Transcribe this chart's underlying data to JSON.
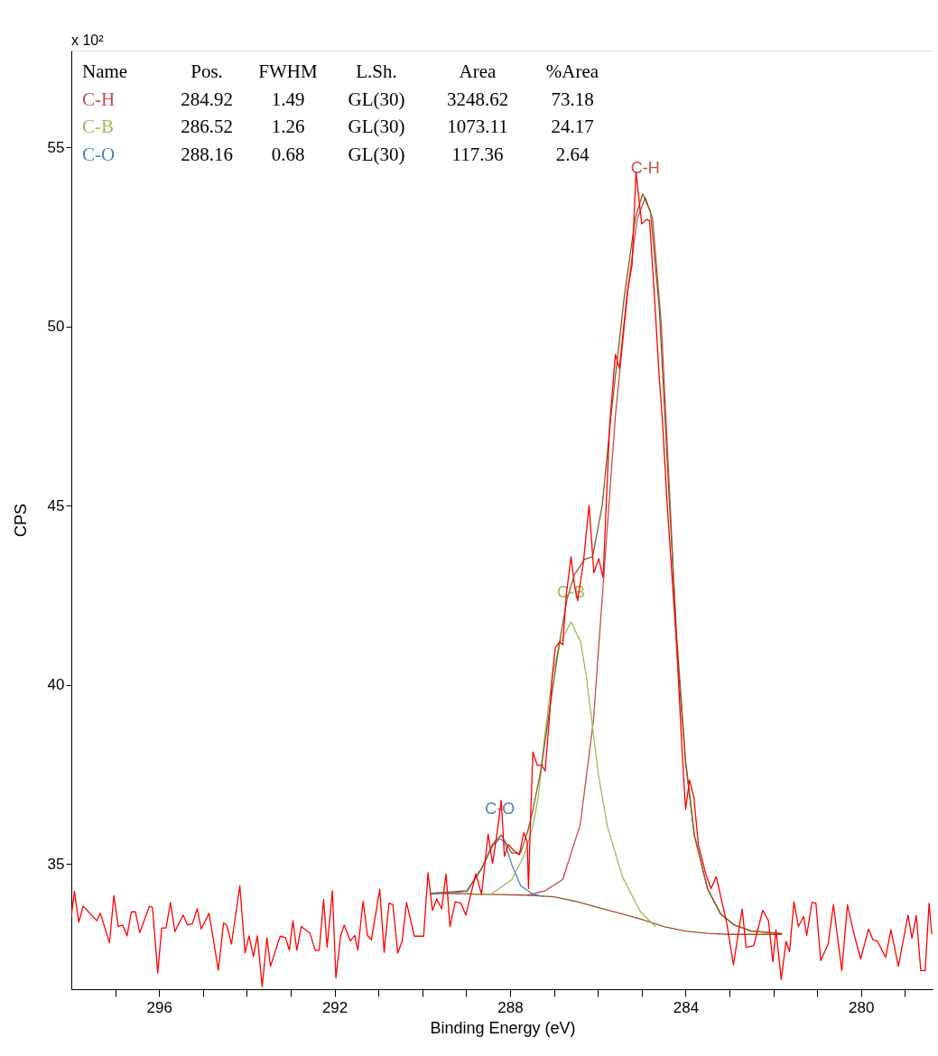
{
  "chart_data": {
    "type": "line",
    "xlabel": "Binding Energy (eV)",
    "ylabel": "CPS",
    "xlim": [
      298,
      278.35
    ],
    "ylim": [
      31.5,
      57.7
    ],
    "xticks": [
      {
        "value": 297,
        "label": null
      },
      296,
      {
        "value": 295,
        "label": null
      },
      {
        "value": 294,
        "label": null
      },
      {
        "value": 293,
        "label": null
      },
      292,
      {
        "value": 291,
        "label": null
      },
      {
        "value": 290,
        "label": null
      },
      {
        "value": 289,
        "label": null
      },
      288,
      {
        "value": 287,
        "label": null
      },
      {
        "value": 286,
        "label": null
      },
      {
        "value": 285,
        "label": null
      },
      284,
      {
        "value": 283,
        "label": null
      },
      {
        "value": 282,
        "label": null
      },
      {
        "value": 281,
        "label": null
      },
      280,
      {
        "value": 279,
        "label": null
      }
    ],
    "yticks": [
      35,
      40,
      45,
      50,
      55
    ],
    "grid": false,
    "marker": "none",
    "line_style": "solid",
    "annotations": [
      "x 10²",
      "Name",
      "Pos.",
      "FWHM",
      "L.Sh.",
      "Area",
      "%Area",
      "C-H",
      "284.92",
      "1.49",
      "GL(30)",
      "3248.62",
      "73.18",
      "C-B",
      "286.52",
      "1.26",
      "GL(30)",
      "1073.11",
      "24.17",
      "C-O",
      "288.16",
      "0.68",
      "GL(30)",
      "117.36",
      "2.64"
    ],
    "series": [
      {
        "color": "#a0522d",
        "x": [
          289.8,
          288.5,
          287.5,
          287.0,
          286.5,
          286.0,
          285.5,
          285.0,
          284.5,
          284.0,
          283.5,
          283.0,
          281.8
        ],
        "values": [
          34.18,
          34.15,
          34.12,
          34.08,
          33.95,
          33.78,
          33.62,
          33.45,
          33.25,
          33.12,
          33.06,
          33.03,
          33.03
        ]
      },
      {
        "name": "C-H",
        "color": "#c0504d",
        "x": [
          287.6,
          287.2,
          286.8,
          286.4,
          286.1,
          285.86,
          285.6,
          285.3,
          285.1,
          284.92,
          284.75,
          284.55,
          284.35,
          284.2,
          284.0,
          283.8,
          283.5,
          283.2,
          282.9,
          282.5,
          281.8
        ],
        "values": [
          34.12,
          34.25,
          34.56,
          36.1,
          39.0,
          43.1,
          47.5,
          51.2,
          53.0,
          53.6,
          53.0,
          50.0,
          45.0,
          41.0,
          37.8,
          35.8,
          34.3,
          33.6,
          33.3,
          33.12,
          33.05
        ]
      },
      {
        "name": "C-B",
        "color": "#9bbb59",
        "x": [
          288.84,
          288.43,
          287.96,
          287.69,
          287.48,
          287.35,
          287.21,
          287.04,
          286.87,
          286.61,
          286.39,
          286.26,
          286.12,
          285.99,
          285.78,
          285.44,
          285.03,
          284.69
        ],
        "values": [
          34.14,
          34.15,
          34.56,
          35.21,
          36.03,
          36.93,
          38.57,
          40.2,
          41.15,
          41.75,
          41.19,
          40.21,
          38.82,
          37.51,
          36.03,
          34.64,
          33.66,
          33.25
        ]
      },
      {
        "name": "C-O",
        "color": "#4f81bd",
        "x": [
          289.83,
          288.98,
          288.64,
          288.4,
          288.23,
          288.13,
          287.96,
          287.76,
          287.48,
          287.24
        ],
        "values": [
          34.15,
          34.23,
          34.88,
          35.5,
          35.7,
          35.62,
          34.97,
          34.39,
          34.15,
          34.09
        ]
      },
      {
        "color": "#806020",
        "x": [
          289.8,
          288.98,
          288.64,
          288.4,
          288.2,
          287.96,
          287.76,
          287.6,
          287.48,
          287.3,
          287.1,
          286.87,
          286.7,
          286.53,
          286.3,
          286.12,
          285.9,
          285.7,
          285.4,
          285.15,
          284.98,
          284.8,
          284.6,
          284.4,
          284.2,
          284.0,
          283.8,
          283.5,
          283.2,
          282.9,
          282.5,
          281.8
        ],
        "values": [
          34.18,
          34.25,
          34.9,
          35.55,
          35.8,
          35.3,
          35.3,
          35.9,
          36.5,
          37.6,
          39.3,
          41.2,
          42.4,
          43.08,
          43.5,
          43.57,
          45.0,
          47.5,
          50.8,
          53.0,
          53.7,
          53.2,
          50.5,
          45.8,
          41.3,
          37.9,
          35.8,
          34.3,
          33.6,
          33.3,
          33.12,
          33.05
        ]
      },
      {
        "color": "#ff0000",
        "x": [
          298.0,
          297.93,
          297.83,
          297.73,
          297.42,
          297.34,
          297.13,
          297.03,
          296.93,
          296.83,
          296.73,
          296.63,
          296.54,
          296.44,
          296.22,
          296.15,
          296.03,
          295.94,
          295.84,
          295.74,
          295.64,
          295.45,
          295.35,
          295.24,
          295.13,
          295.04,
          294.86,
          294.65,
          294.53,
          294.46,
          294.35,
          294.16,
          294.04,
          293.95,
          293.85,
          293.76,
          293.65,
          293.54,
          293.46,
          293.24,
          293.12,
          293.03,
          292.95,
          292.86,
          292.76,
          292.56,
          292.44,
          292.35,
          292.25,
          292.17,
          292.05,
          291.97,
          291.86,
          291.78,
          291.64,
          291.54,
          291.47,
          291.35,
          291.25,
          291.16,
          290.97,
          290.87,
          290.76,
          290.67,
          290.56,
          290.46,
          290.36,
          290.18,
          289.97,
          289.87,
          289.77,
          289.67,
          289.56,
          289.46,
          289.37,
          289.25,
          289.12,
          289.01,
          288.78,
          288.65,
          288.5,
          288.4,
          288.3,
          288.2,
          288.13,
          288.04,
          287.92,
          287.79,
          287.69,
          287.61,
          287.58,
          287.54,
          287.48,
          287.38,
          287.28,
          287.2,
          287.11,
          287.04,
          286.97,
          286.87,
          286.8,
          286.72,
          286.61,
          286.53,
          286.46,
          286.33,
          286.2,
          286.09,
          285.98,
          285.88,
          285.73,
          285.6,
          285.51,
          285.33,
          285.22,
          285.13,
          285.0,
          284.89,
          284.82,
          284.71,
          284.6,
          284.53,
          284.42,
          284.31,
          284.2,
          284.08,
          284.0,
          283.91,
          283.81,
          283.71,
          283.54,
          283.42,
          283.3,
          283.06,
          282.91,
          282.71,
          282.62,
          282.45,
          282.24,
          282.11,
          282.01,
          281.94,
          281.82,
          281.71,
          281.63,
          281.53,
          281.43,
          281.31,
          281.24,
          281.12,
          281.03,
          280.92,
          280.75,
          280.63,
          280.44,
          280.31,
          280.17,
          280.01,
          279.83,
          279.73,
          279.63,
          279.44,
          279.32,
          279.15,
          278.93,
          278.84,
          278.74,
          278.64,
          278.54,
          278.45,
          278.39
        ],
        "values": [
          33.53,
          34.23,
          33.37,
          33.82,
          33.41,
          33.62,
          32.8,
          34.11,
          33.25,
          33.29,
          32.99,
          33.66,
          33.66,
          33.08,
          33.82,
          33.78,
          31.95,
          33.21,
          33.21,
          33.92,
          33.11,
          33.57,
          33.29,
          33.33,
          33.75,
          33.18,
          33.62,
          32.03,
          33.35,
          33.29,
          32.76,
          34.39,
          32.51,
          32.99,
          32.41,
          32.99,
          31.57,
          32.94,
          32.14,
          32.98,
          32.94,
          32.59,
          33.41,
          32.59,
          33.25,
          33.06,
          32.58,
          32.59,
          34.0,
          32.67,
          34.25,
          31.81,
          33.0,
          33.29,
          32.85,
          33.0,
          32.59,
          33.96,
          33.0,
          32.88,
          34.29,
          32.53,
          33.9,
          33.86,
          32.51,
          32.84,
          33.92,
          32.98,
          32.98,
          34.75,
          33.7,
          34.02,
          33.74,
          34.72,
          33.25,
          33.94,
          33.9,
          33.57,
          34.72,
          34.15,
          35.83,
          35.01,
          35.83,
          36.77,
          35.21,
          35.54,
          35.38,
          35.25,
          35.87,
          35.62,
          34.31,
          36.03,
          38.12,
          37.75,
          37.75,
          37.59,
          38.98,
          40.21,
          41.03,
          41.19,
          41.11,
          42.5,
          43.57,
          42.75,
          42.34,
          43.4,
          45.01,
          43.12,
          43.52,
          42.99,
          47.25,
          49.22,
          48.83,
          50.93,
          51.72,
          54.31,
          52.86,
          52.99,
          52.95,
          50.85,
          48.56,
          47.42,
          45.05,
          43.03,
          41.02,
          38.16,
          36.52,
          37.34,
          36.85,
          35.54,
          34.72,
          34.31,
          34.64,
          33.33,
          32.18,
          33.74,
          32.67,
          32.71,
          33.7,
          33.41,
          32.26,
          33.16,
          31.77,
          32.84,
          32.55,
          33.94,
          33.25,
          33.53,
          33.0,
          33.92,
          33.9,
          32.3,
          32.76,
          33.86,
          32.02,
          33.86,
          33.08,
          32.35,
          33.18,
          32.88,
          32.84,
          32.39,
          33.16,
          32.14,
          33.57,
          32.92,
          33.56,
          32.02,
          32.02,
          33.9,
          33.04
        ]
      }
    ]
  }
}
